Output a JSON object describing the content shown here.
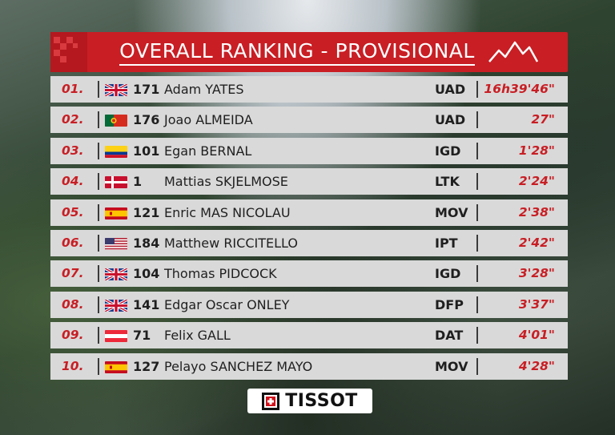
{
  "header": {
    "title": "OVERALL RANKING - PROVISIONAL",
    "color": "#c81e24"
  },
  "ranking": [
    {
      "position": "01.",
      "flag": "flag-gb-icon",
      "bib": "171",
      "name": "Adam YATES",
      "team": "UAD",
      "time": "16h39'46\""
    },
    {
      "position": "02.",
      "flag": "flag-pt-icon",
      "bib": "176",
      "name": "Joao ALMEIDA",
      "team": "UAD",
      "time": "27\""
    },
    {
      "position": "03.",
      "flag": "flag-co-icon",
      "bib": "101",
      "name": "Egan BERNAL",
      "team": "IGD",
      "time": "1'28\""
    },
    {
      "position": "04.",
      "flag": "flag-dk-icon",
      "bib": "1",
      "name": "Mattias SKJELMOSE",
      "team": "LTK",
      "time": "2'24\""
    },
    {
      "position": "05.",
      "flag": "flag-es-icon",
      "bib": "121",
      "name": "Enric MAS NICOLAU",
      "team": "MOV",
      "time": "2'38\""
    },
    {
      "position": "06.",
      "flag": "flag-us-icon",
      "bib": "184",
      "name": "Matthew RICCITELLO",
      "team": "IPT",
      "time": "2'42\""
    },
    {
      "position": "07.",
      "flag": "flag-gb-icon",
      "bib": "104",
      "name": "Thomas PIDCOCK",
      "team": "IGD",
      "time": "3'28\""
    },
    {
      "position": "08.",
      "flag": "flag-gb-icon",
      "bib": "141",
      "name": "Edgar Oscar ONLEY",
      "team": "DFP",
      "time": "3'37\""
    },
    {
      "position": "09.",
      "flag": "flag-at-icon",
      "bib": "71",
      "name": "Felix GALL",
      "team": "DAT",
      "time": "4'01\""
    },
    {
      "position": "10.",
      "flag": "flag-es-icon",
      "bib": "127",
      "name": "Pelayo SANCHEZ MAYO",
      "team": "MOV",
      "time": "4'28\""
    }
  ],
  "sponsor": {
    "name": "TISSOT",
    "logo": "tissot-cross-logo-icon"
  }
}
